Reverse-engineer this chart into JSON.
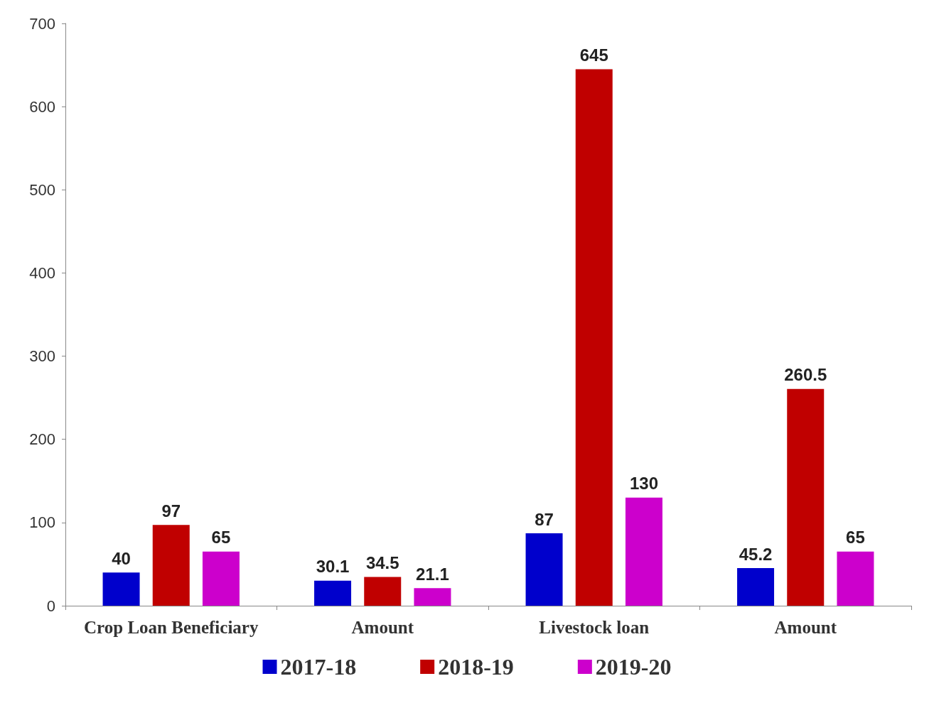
{
  "chart_data": {
    "type": "bar",
    "categories": [
      "Crop Loan Beneficiary",
      "Amount",
      "Livestock loan",
      "Amount"
    ],
    "series": [
      {
        "name": "2017-18",
        "color": "#0000cc",
        "values": [
          40,
          30.1,
          87,
          45.2
        ]
      },
      {
        "name": "2018-19",
        "color": "#c00000",
        "values": [
          97,
          34.5,
          645,
          260.5
        ]
      },
      {
        "name": "2019-20",
        "color": "#cc00cc",
        "values": [
          65,
          21.1,
          130,
          65
        ]
      }
    ],
    "ylim": [
      0,
      700
    ],
    "yticks": [
      0,
      100,
      200,
      300,
      400,
      500,
      600,
      700
    ],
    "grid": false,
    "legend": "bottom",
    "data_labels": true
  }
}
